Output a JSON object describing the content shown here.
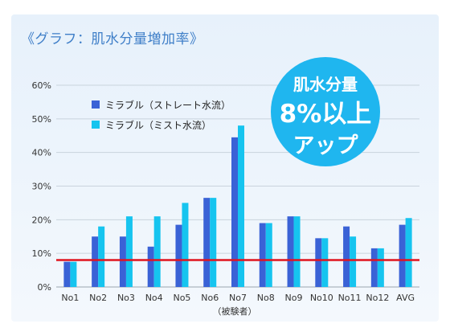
{
  "title": "《グラフ：肌水分量増加率》",
  "badge": {
    "line1": "肌水分量",
    "line2": "8%以上",
    "line3": "アップ"
  },
  "colors": {
    "series1": "#3a62d6",
    "series2": "#16c4ef",
    "reference": "#e0141e",
    "badge": "#1fb6ef"
  },
  "chart_data": {
    "type": "bar",
    "title": "《グラフ：肌水分量増加率》",
    "xlabel": "（被験者）",
    "ylabel": "",
    "ylim": [
      0,
      60
    ],
    "yticks": [
      "0%",
      "10%",
      "20%",
      "30%",
      "40%",
      "50%",
      "60%"
    ],
    "categories": [
      "No1",
      "No2",
      "No3",
      "No4",
      "No5",
      "No6",
      "No7",
      "No8",
      "No9",
      "No10",
      "No11",
      "No12",
      "AVG"
    ],
    "series": [
      {
        "name": "ミラブル（ストレート水流）",
        "values": [
          7.5,
          15,
          15,
          12,
          18.5,
          26.5,
          44.5,
          19,
          21,
          14.5,
          18,
          11.5,
          18.5
        ]
      },
      {
        "name": "ミラブル（ミスト水流）",
        "values": [
          7.5,
          18,
          21,
          21,
          25,
          26.5,
          48,
          19,
          21,
          14.5,
          15,
          11.5,
          20.5
        ]
      }
    ],
    "reference_line": 8,
    "grid": true,
    "legend": "top-left"
  }
}
